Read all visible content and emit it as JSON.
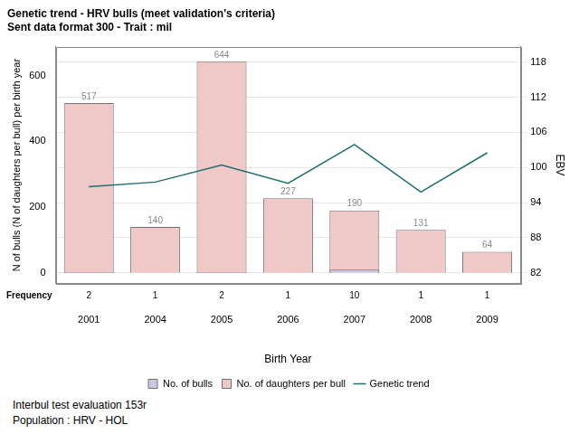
{
  "chart_data": {
    "type": "bar",
    "title": "Genetic trend - HRV bulls (meet validation's criteria)",
    "subtitle": "Sent data format 300 - Trait : mil",
    "x_label": "Birth Year",
    "y_label": "N of bulls (N of daughters per bull) per birth year",
    "y2_label": "EBV",
    "categories": [
      "2001",
      "2004",
      "2005",
      "2006",
      "2007",
      "2008",
      "2009"
    ],
    "series": [
      {
        "name": "No. of bulls",
        "color": "#c8c8e4",
        "values": [
          2,
          1,
          2,
          1,
          10,
          1,
          1
        ]
      },
      {
        "name": "No. of daughters per bull",
        "color": "#f0c8c8",
        "values": [
          517,
          140,
          644,
          227,
          190,
          131,
          64
        ],
        "data_labels": true
      },
      {
        "name": "Genetic trend",
        "type": "line",
        "axis": "y2",
        "color": "#1f6e6e",
        "values": [
          96.7,
          97.5,
          100.4,
          97.3,
          103.9,
          95.8,
          102.5
        ]
      }
    ],
    "frequency": {
      "label": "Frequency",
      "values": [
        2,
        1,
        2,
        1,
        10,
        1,
        1
      ]
    },
    "ylim": [
      -32,
      688
    ],
    "yticks": [
      0,
      200,
      400,
      600
    ],
    "y2lim": [
      80.2,
      120.6
    ],
    "y2ticks": [
      82,
      88,
      94,
      100,
      106,
      112,
      118
    ],
    "grid": true,
    "legend": "bottom",
    "footnotes": [
      "Interbul test evaluation 153r",
      "Population : HRV - HOL"
    ]
  }
}
